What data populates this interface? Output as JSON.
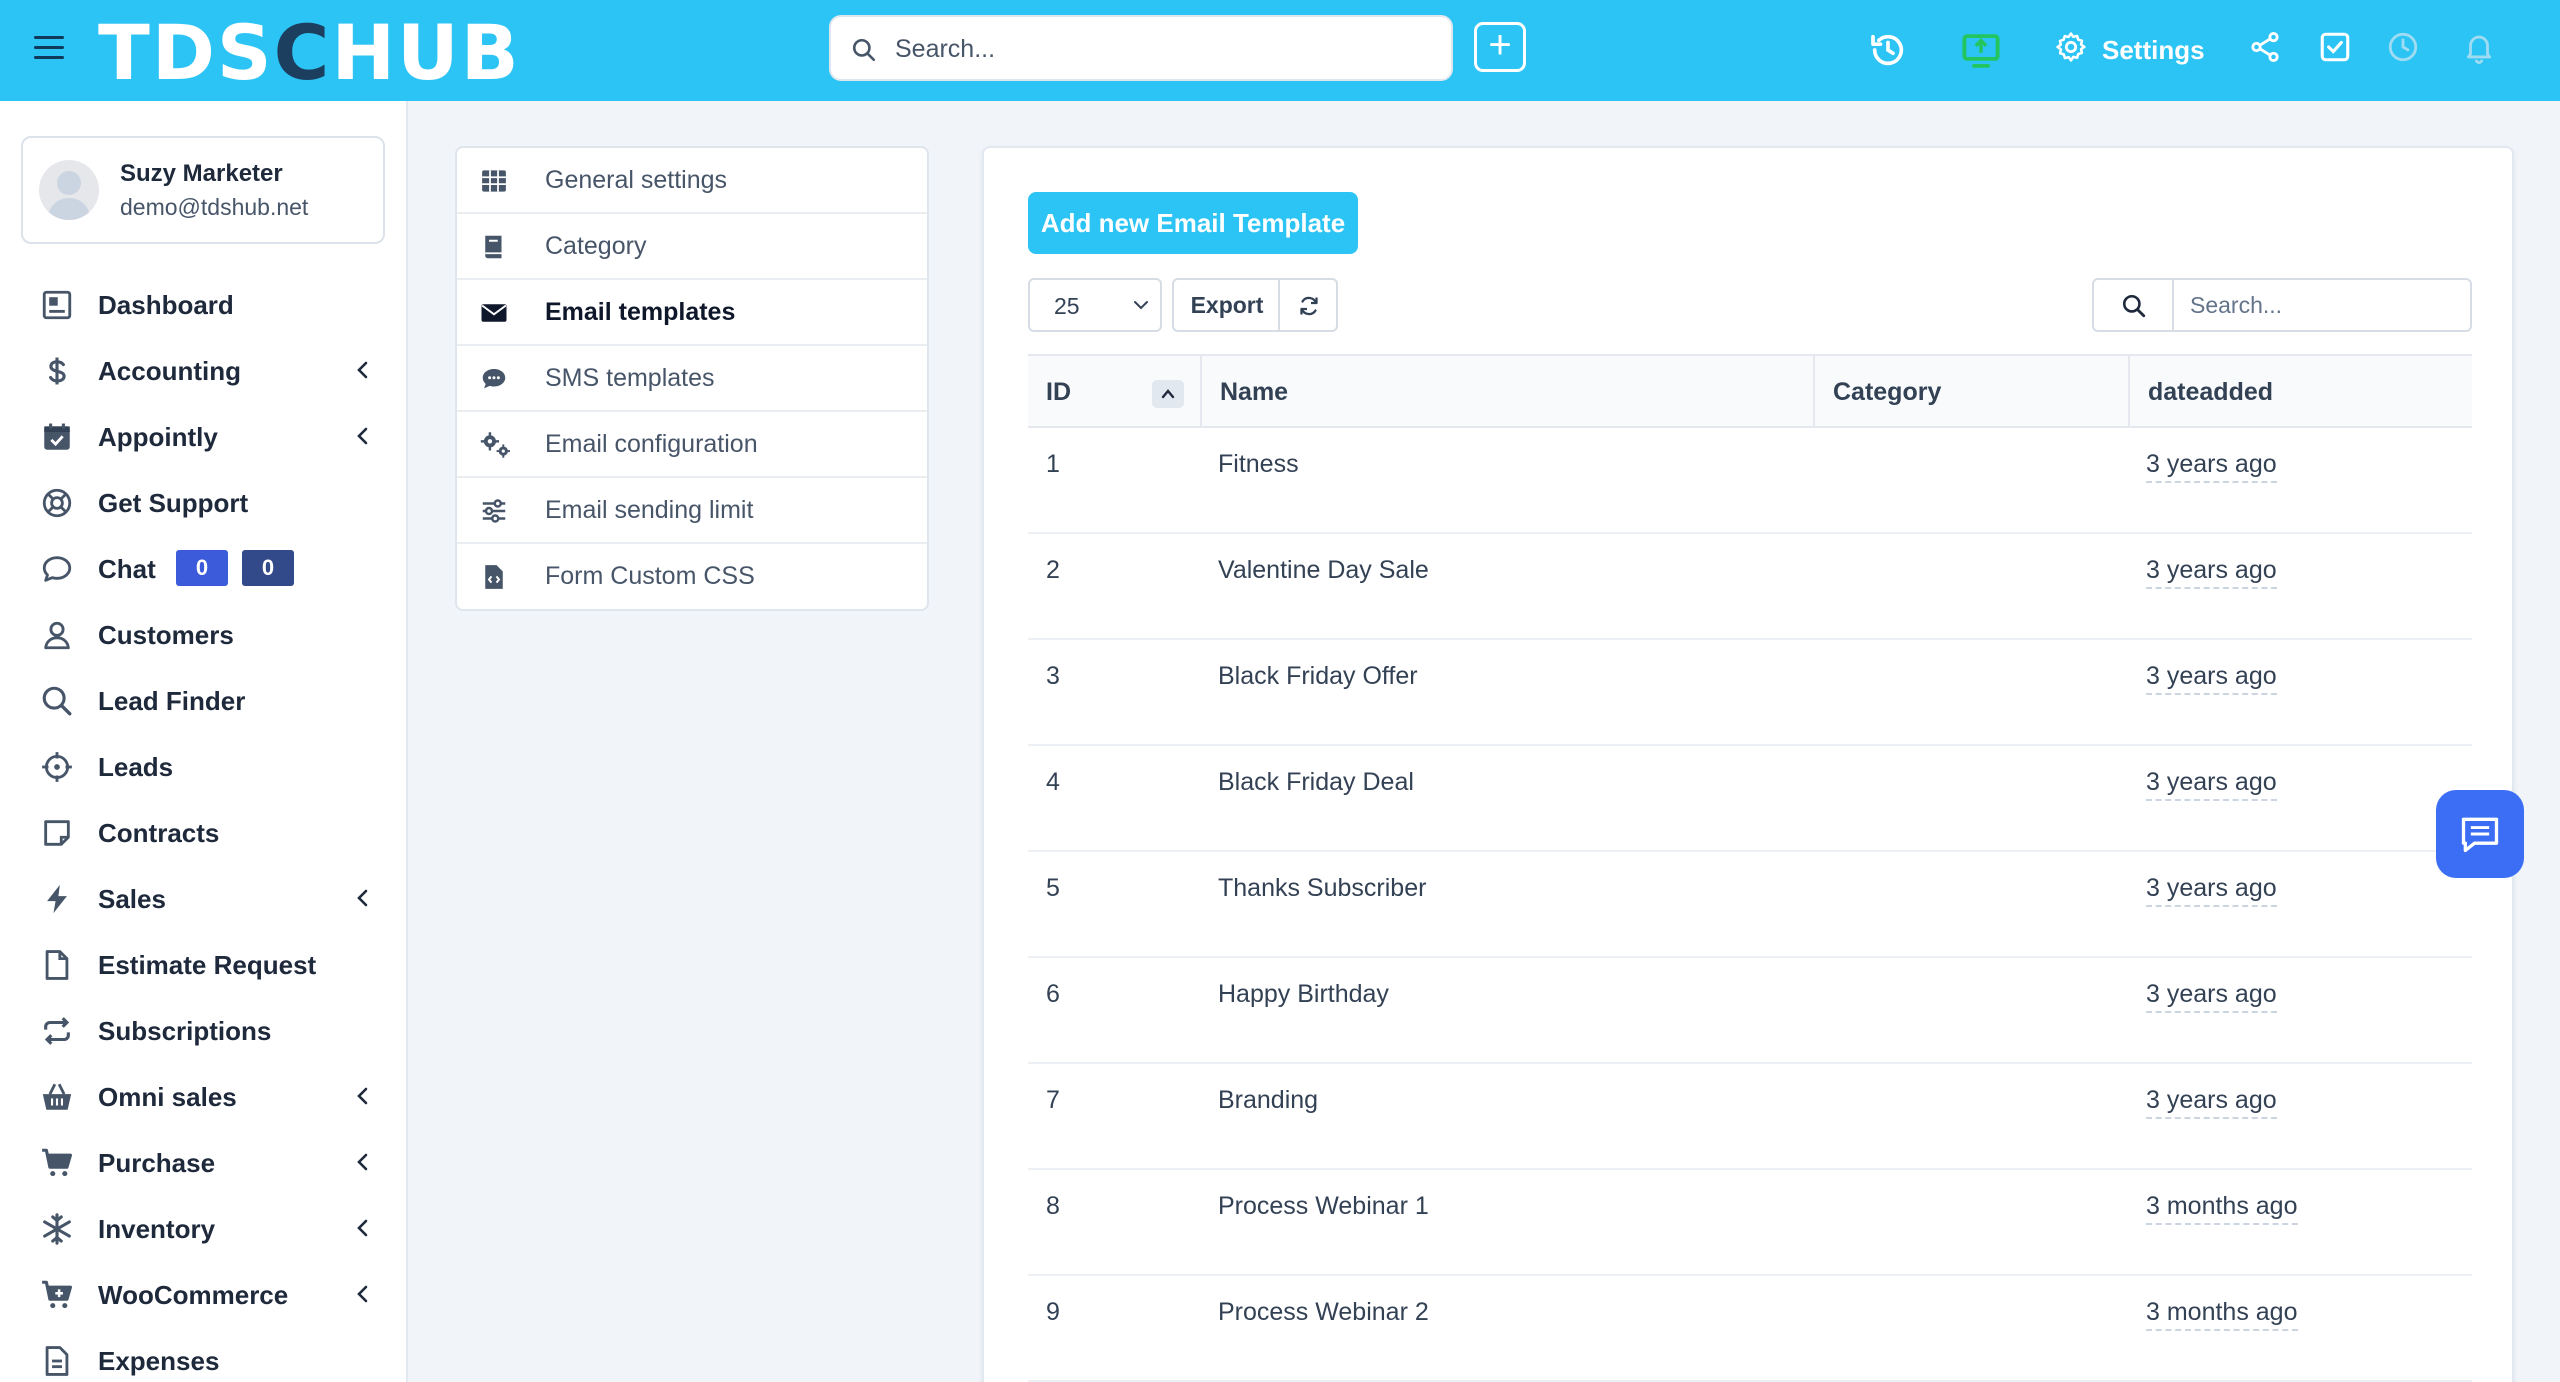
{
  "header": {
    "logo_left": "TDS",
    "logo_mid": "C",
    "logo_right": "HUB",
    "search_placeholder": "Search...",
    "plus_label": "+",
    "settings_label": "Settings",
    "brand_color": "#2cc4f4"
  },
  "profile": {
    "name": "Suzy Marketer",
    "email": "demo@tdshub.net"
  },
  "sidebar": {
    "items": [
      {
        "label": "Dashboard",
        "icon": "dashboard-icon"
      },
      {
        "label": "Accounting",
        "icon": "dollar-icon",
        "has_chevron": true
      },
      {
        "label": "Appointly",
        "icon": "calendar-check-icon",
        "has_chevron": true
      },
      {
        "label": "Get Support",
        "icon": "lifebuoy-icon"
      },
      {
        "label": "Chat",
        "icon": "chat-bubble-icon",
        "badges": [
          "0",
          "0"
        ]
      },
      {
        "label": "Customers",
        "icon": "user-icon"
      },
      {
        "label": "Lead Finder",
        "icon": "magnifier-icon"
      },
      {
        "label": "Leads",
        "icon": "crosshair-icon"
      },
      {
        "label": "Contracts",
        "icon": "contract-icon"
      },
      {
        "label": "Sales",
        "icon": "bolt-icon",
        "has_chevron": true
      },
      {
        "label": "Estimate Request",
        "icon": "file-icon"
      },
      {
        "label": "Subscriptions",
        "icon": "repeat-icon"
      },
      {
        "label": "Omni sales",
        "icon": "basket-icon",
        "has_chevron": true
      },
      {
        "label": "Purchase",
        "icon": "cart-icon",
        "has_chevron": true
      },
      {
        "label": "Inventory",
        "icon": "snowflake-icon",
        "has_chevron": true
      },
      {
        "label": "WooCommerce",
        "icon": "cart-plus-icon",
        "has_chevron": true
      },
      {
        "label": "Expenses",
        "icon": "receipt-icon"
      }
    ]
  },
  "submenu": {
    "items": [
      {
        "label": "General settings",
        "icon": "table-grid-icon"
      },
      {
        "label": "Category",
        "icon": "book-icon"
      },
      {
        "label": "Email templates",
        "icon": "envelope-icon",
        "active": true
      },
      {
        "label": "SMS templates",
        "icon": "sms-bubble-icon"
      },
      {
        "label": "Email configuration",
        "icon": "gears-icon"
      },
      {
        "label": "Email sending limit",
        "icon": "sliders-icon"
      },
      {
        "label": "Form Custom CSS",
        "icon": "code-file-icon"
      }
    ]
  },
  "main": {
    "add_button": "Add new Email Template",
    "page_length": "25",
    "export_label": "Export",
    "search_placeholder": "Search...",
    "columns": [
      "ID",
      "Name",
      "Category",
      "dateadded"
    ],
    "rows": [
      {
        "id": "1",
        "name": "Fitness",
        "category": "",
        "date": "3 years ago"
      },
      {
        "id": "2",
        "name": "Valentine Day Sale",
        "category": "",
        "date": "3 years ago"
      },
      {
        "id": "3",
        "name": "Black Friday Offer",
        "category": "",
        "date": "3 years ago"
      },
      {
        "id": "4",
        "name": "Black Friday Deal",
        "category": "",
        "date": "3 years ago"
      },
      {
        "id": "5",
        "name": "Thanks Subscriber",
        "category": "",
        "date": "3 years ago"
      },
      {
        "id": "6",
        "name": "Happy Birthday",
        "category": "",
        "date": "3 years ago"
      },
      {
        "id": "7",
        "name": "Branding",
        "category": "",
        "date": "3 years ago"
      },
      {
        "id": "8",
        "name": "Process Webinar 1",
        "category": "",
        "date": "3 months ago"
      },
      {
        "id": "9",
        "name": "Process Webinar 2",
        "category": "",
        "date": "3 months ago"
      }
    ]
  }
}
